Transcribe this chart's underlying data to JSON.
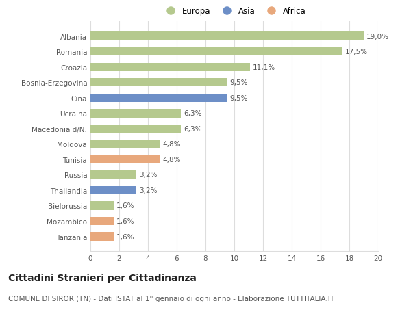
{
  "categories": [
    "Albania",
    "Romania",
    "Croazia",
    "Bosnia-Erzegovina",
    "Cina",
    "Ucraina",
    "Macedonia d/N.",
    "Moldova",
    "Tunisia",
    "Russia",
    "Thailandia",
    "Bielorussia",
    "Mozambico",
    "Tanzania"
  ],
  "values": [
    19.0,
    17.5,
    11.1,
    9.5,
    9.5,
    6.3,
    6.3,
    4.8,
    4.8,
    3.2,
    3.2,
    1.6,
    1.6,
    1.6
  ],
  "continents": [
    "Europa",
    "Europa",
    "Europa",
    "Europa",
    "Asia",
    "Europa",
    "Europa",
    "Europa",
    "Africa",
    "Europa",
    "Asia",
    "Europa",
    "Africa",
    "Africa"
  ],
  "labels": [
    "19,0%",
    "17,5%",
    "11,1%",
    "9,5%",
    "9,5%",
    "6,3%",
    "6,3%",
    "4,8%",
    "4,8%",
    "3,2%",
    "3,2%",
    "1,6%",
    "1,6%",
    "1,6%"
  ],
  "colors": {
    "Europa": "#b5c98e",
    "Asia": "#6d8fc7",
    "Africa": "#e8a87c"
  },
  "xlim": [
    0,
    20
  ],
  "xticks": [
    0,
    2,
    4,
    6,
    8,
    10,
    12,
    14,
    16,
    18,
    20
  ],
  "title": "Cittadini Stranieri per Cittadinanza",
  "subtitle": "COMUNE DI SIROR (TN) - Dati ISTAT al 1° gennaio di ogni anno - Elaborazione TUTTITALIA.IT",
  "bg_color": "#ffffff",
  "grid_color": "#dddddd",
  "bar_height": 0.55,
  "title_fontsize": 10,
  "subtitle_fontsize": 7.5,
  "label_fontsize": 7.5,
  "tick_fontsize": 7.5,
  "legend_fontsize": 8.5
}
